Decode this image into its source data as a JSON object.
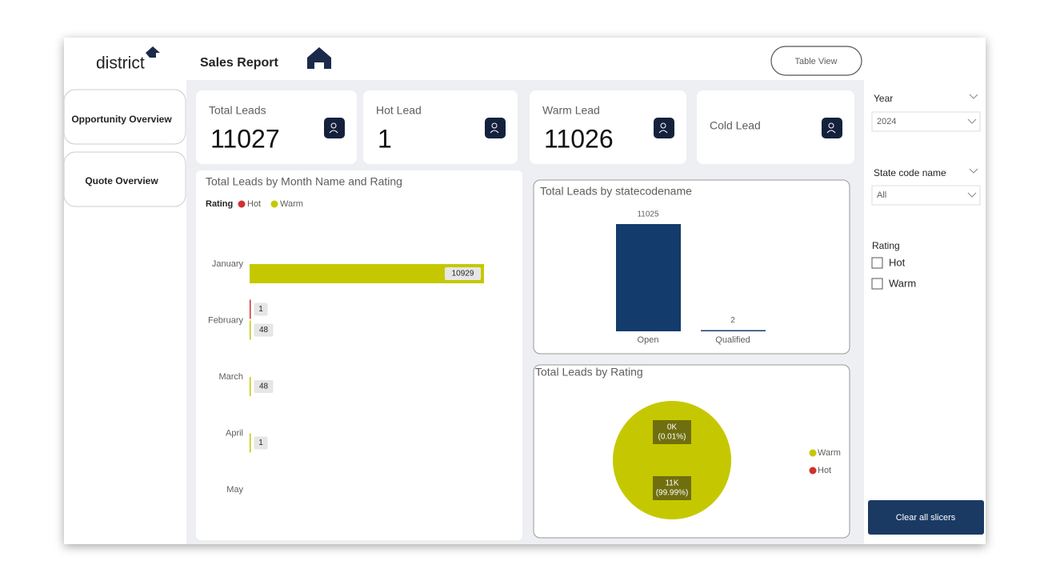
{
  "header": {
    "logo": "district",
    "title": "Sales Report",
    "button": "Table View"
  },
  "nav": {
    "tabs": [
      "Opportunity Overview",
      "Quote Overview"
    ]
  },
  "kpis": [
    {
      "label": "Total Leads",
      "value": 11027
    },
    {
      "label": "Hot Lead",
      "value": 1
    },
    {
      "label": "Warm Lead",
      "value": 11026
    },
    {
      "label": "Cold Lead"
    }
  ],
  "chart_data": [
    {
      "type": "bar",
      "orientation": "horizontal",
      "title": "Total Leads by Month Name and Rating",
      "legend_title": "Rating",
      "categories": [
        "January",
        "February",
        "March",
        "April",
        "May"
      ],
      "series": [
        {
          "name": "Hot",
          "color": "#d0312d",
          "values": [
            null,
            1,
            null,
            null,
            null
          ]
        },
        {
          "name": "Warm",
          "color": "#c5c800",
          "values": [
            10929,
            48,
            48,
            1,
            null
          ]
        }
      ]
    },
    {
      "type": "bar",
      "orientation": "vertical",
      "title": "Total Leads by statecodename",
      "categories": [
        "Open",
        "Qualified"
      ],
      "values": [
        11025,
        2
      ],
      "color": "#133b6b"
    },
    {
      "type": "pie",
      "title": "Total Leads by Rating",
      "categories": [
        "Warm",
        "Hot"
      ],
      "values": [
        11026,
        1
      ],
      "colors": [
        "#c5c800",
        "#d0312d"
      ],
      "value_labels": [
        "11K",
        "0K"
      ],
      "percent_labels": [
        "(99.99%)",
        "(0.01%)"
      ]
    }
  ],
  "slicers": {
    "year": {
      "label": "Year",
      "selected": "2024"
    },
    "state": {
      "label": "State code name",
      "selected": "All"
    },
    "rating": {
      "label": "Rating",
      "options": [
        "Hot",
        "Warm"
      ]
    },
    "clear": "Clear all slicers"
  }
}
